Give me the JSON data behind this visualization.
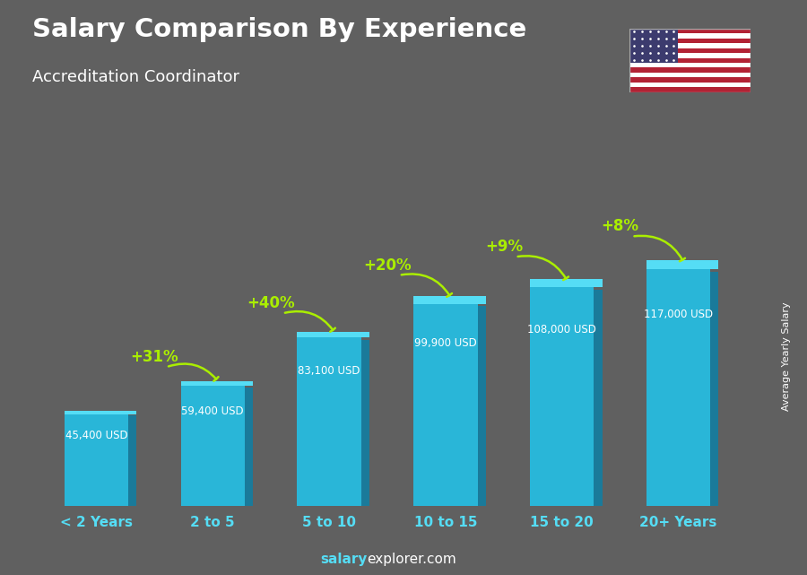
{
  "title_line1": "Salary Comparison By Experience",
  "title_line2": "Accreditation Coordinator",
  "categories": [
    "< 2 Years",
    "2 to 5",
    "5 to 10",
    "10 to 15",
    "15 to 20",
    "20+ Years"
  ],
  "values": [
    45400,
    59400,
    83100,
    99900,
    108000,
    117000
  ],
  "salary_labels": [
    "45,400 USD",
    "59,400 USD",
    "83,100 USD",
    "99,900 USD",
    "108,000 USD",
    "117,000 USD"
  ],
  "pct_labels": [
    null,
    "+31%",
    "+40%",
    "+20%",
    "+9%",
    "+8%"
  ],
  "bar_color_face": "#29b6d8",
  "bar_color_side": "#1a7a9a",
  "bar_color_top": "#55ddf5",
  "background_color": "#606060",
  "text_color_white": "#ffffff",
  "text_color_cyan": "#55ddf5",
  "text_color_green": "#aaee00",
  "ylabel": "Average Yearly Salary",
  "ylim": [
    0,
    145000
  ]
}
